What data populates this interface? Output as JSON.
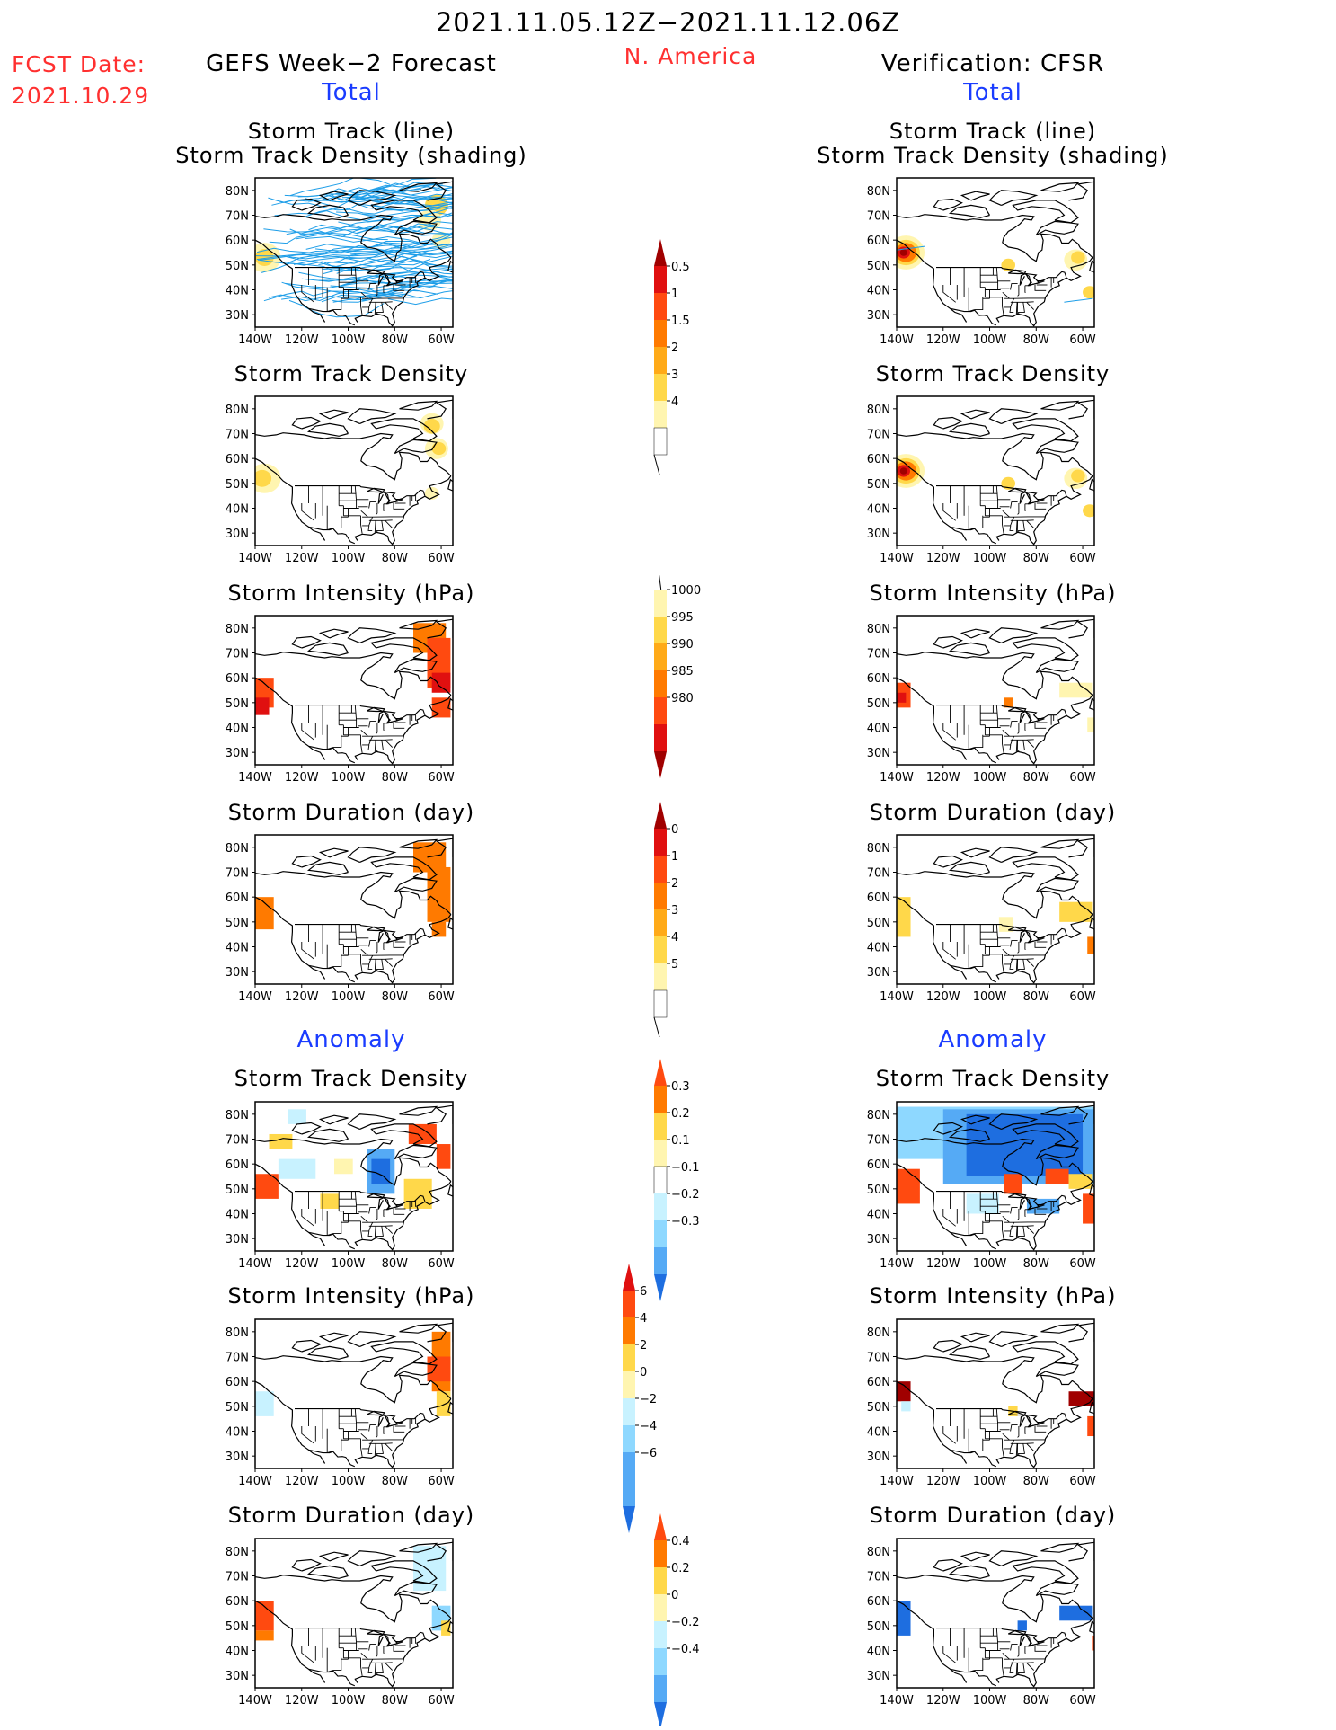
{
  "header": {
    "period": "2021.11.05.12Z−2021.11.12.06Z",
    "region": "N. America",
    "fcst_label": "FCST Date:",
    "fcst_date": "2021.10.29",
    "left_title": "GEFS Week−2 Forecast",
    "right_title": "Verification: CFSR",
    "total_label": "Total",
    "anomaly_label": "Anomaly"
  },
  "panels": {
    "track": "Storm Track (line)",
    "track_sub": "Storm Track Density (shading)",
    "density": "Storm Track Density",
    "intensity": "Storm Intensity (hPa)",
    "duration": "Storm Duration (day)"
  },
  "axes": {
    "lat_labels": [
      "80N",
      "70N",
      "60N",
      "50N",
      "40N",
      "30N"
    ],
    "lon_labels": [
      "140W",
      "120W",
      "100W",
      "80W",
      "60W"
    ]
  },
  "colors": {
    "pale_yellow": "#fff5b0",
    "yellow": "#ffd84a",
    "orange_light": "#ffaa18",
    "orange": "#ff7a00",
    "red_orange": "#ff4a10",
    "red": "#e01010",
    "dark_red": "#a00000",
    "light_cyan": "#c8f2ff",
    "cyan": "#8ed8ff",
    "light_blue": "#55aaf5",
    "blue": "#1e6ee0",
    "track_line": "#1e9ee8"
  },
  "chart_data": {
    "type": "heatmap",
    "colorbars": [
      {
        "name": "total-density",
        "ticks": [
          "0.5",
          "1",
          "1.5",
          "2",
          "3",
          "4"
        ]
      },
      {
        "name": "total-intensity",
        "ticks": [
          "1000",
          "995",
          "990",
          "985",
          "980"
        ]
      },
      {
        "name": "total-duration",
        "ticks": [
          "0",
          "1",
          "2",
          "3",
          "4",
          "5"
        ]
      },
      {
        "name": "anom-density",
        "ticks": [
          "0.3",
          "0.2",
          "0.1",
          "−0.1",
          "−0.2",
          "−0.3"
        ]
      },
      {
        "name": "anom-intensity",
        "ticks": [
          "6",
          "4",
          "2",
          "0",
          "−2",
          "−4",
          "−6"
        ]
      },
      {
        "name": "anom-duration",
        "ticks": [
          "0.4",
          "0.2",
          "0",
          "−0.2",
          "−0.4"
        ]
      }
    ],
    "maps": [
      {
        "name": "fcst-total-track",
        "lat_range": [
          25,
          85
        ],
        "lon_range": [
          -140,
          -55
        ],
        "has_tracks": true
      },
      {
        "name": "verif-total-track",
        "lat_range": [
          25,
          85
        ],
        "lon_range": [
          -140,
          -55
        ],
        "has_tracks": true
      },
      {
        "name": "fcst-total-density",
        "lat_range": [
          25,
          85
        ],
        "lon_range": [
          -140,
          -55
        ]
      },
      {
        "name": "verif-total-density",
        "lat_range": [
          25,
          85
        ],
        "lon_range": [
          -140,
          -55
        ]
      },
      {
        "name": "fcst-total-intensity",
        "lat_range": [
          25,
          85
        ],
        "lon_range": [
          -140,
          -55
        ]
      },
      {
        "name": "verif-total-intensity",
        "lat_range": [
          25,
          85
        ],
        "lon_range": [
          -140,
          -55
        ]
      },
      {
        "name": "fcst-total-duration",
        "lat_range": [
          25,
          85
        ],
        "lon_range": [
          -140,
          -55
        ]
      },
      {
        "name": "verif-total-duration",
        "lat_range": [
          25,
          85
        ],
        "lon_range": [
          -140,
          -55
        ]
      },
      {
        "name": "fcst-anom-density",
        "lat_range": [
          25,
          85
        ],
        "lon_range": [
          -140,
          -55
        ]
      },
      {
        "name": "verif-anom-density",
        "lat_range": [
          25,
          85
        ],
        "lon_range": [
          -140,
          -55
        ]
      },
      {
        "name": "fcst-anom-intensity",
        "lat_range": [
          25,
          85
        ],
        "lon_range": [
          -140,
          -55
        ]
      },
      {
        "name": "verif-anom-intensity",
        "lat_range": [
          25,
          85
        ],
        "lon_range": [
          -140,
          -55
        ]
      },
      {
        "name": "fcst-anom-duration",
        "lat_range": [
          25,
          85
        ],
        "lon_range": [
          -140,
          -55
        ]
      },
      {
        "name": "verif-anom-duration",
        "lat_range": [
          25,
          85
        ],
        "lon_range": [
          -140,
          -55
        ]
      }
    ]
  }
}
